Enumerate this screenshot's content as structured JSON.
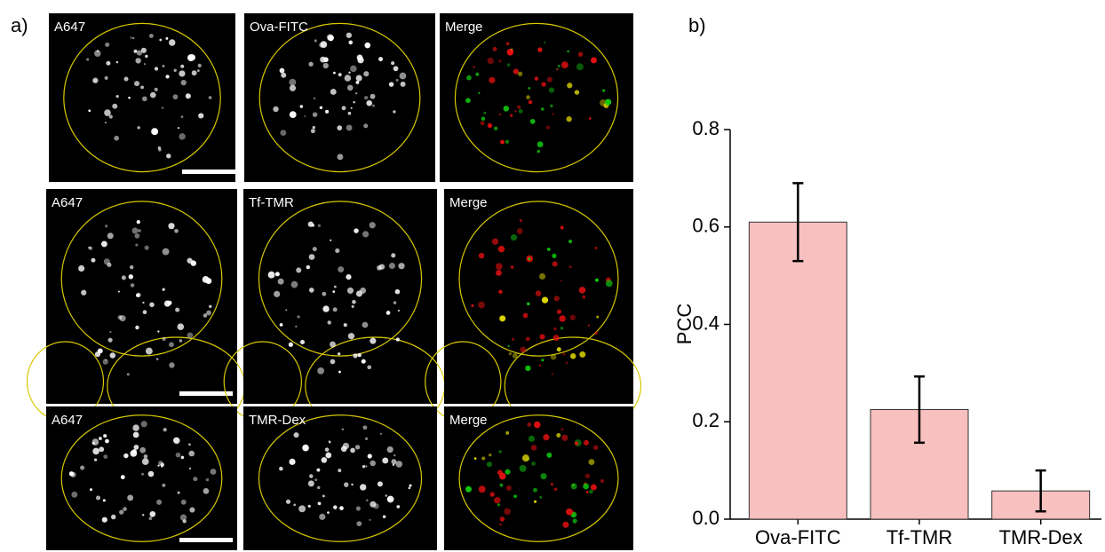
{
  "panels": {
    "a": "a)",
    "b": "b)"
  },
  "images": [
    [
      "A647",
      "Ova-FITC",
      "Merge"
    ],
    [
      "A647",
      "Tf-TMR",
      "Merge"
    ],
    [
      "A647",
      "TMR-Dex",
      "Merge"
    ]
  ],
  "chart_data": {
    "type": "bar",
    "y_label": "PCC",
    "categories": [
      "Ova-FITC",
      "Tf-TMR",
      "TMR-Dex"
    ],
    "values": [
      0.61,
      0.225,
      0.058
    ],
    "errors": [
      0.08,
      0.068,
      0.042
    ],
    "color": "#f9c0c0",
    "ylim": [
      0,
      0.8
    ],
    "yticks": [
      {
        "value": 0,
        "label": "0.0"
      },
      0.2,
      0.4,
      0.6,
      0.8
    ]
  }
}
